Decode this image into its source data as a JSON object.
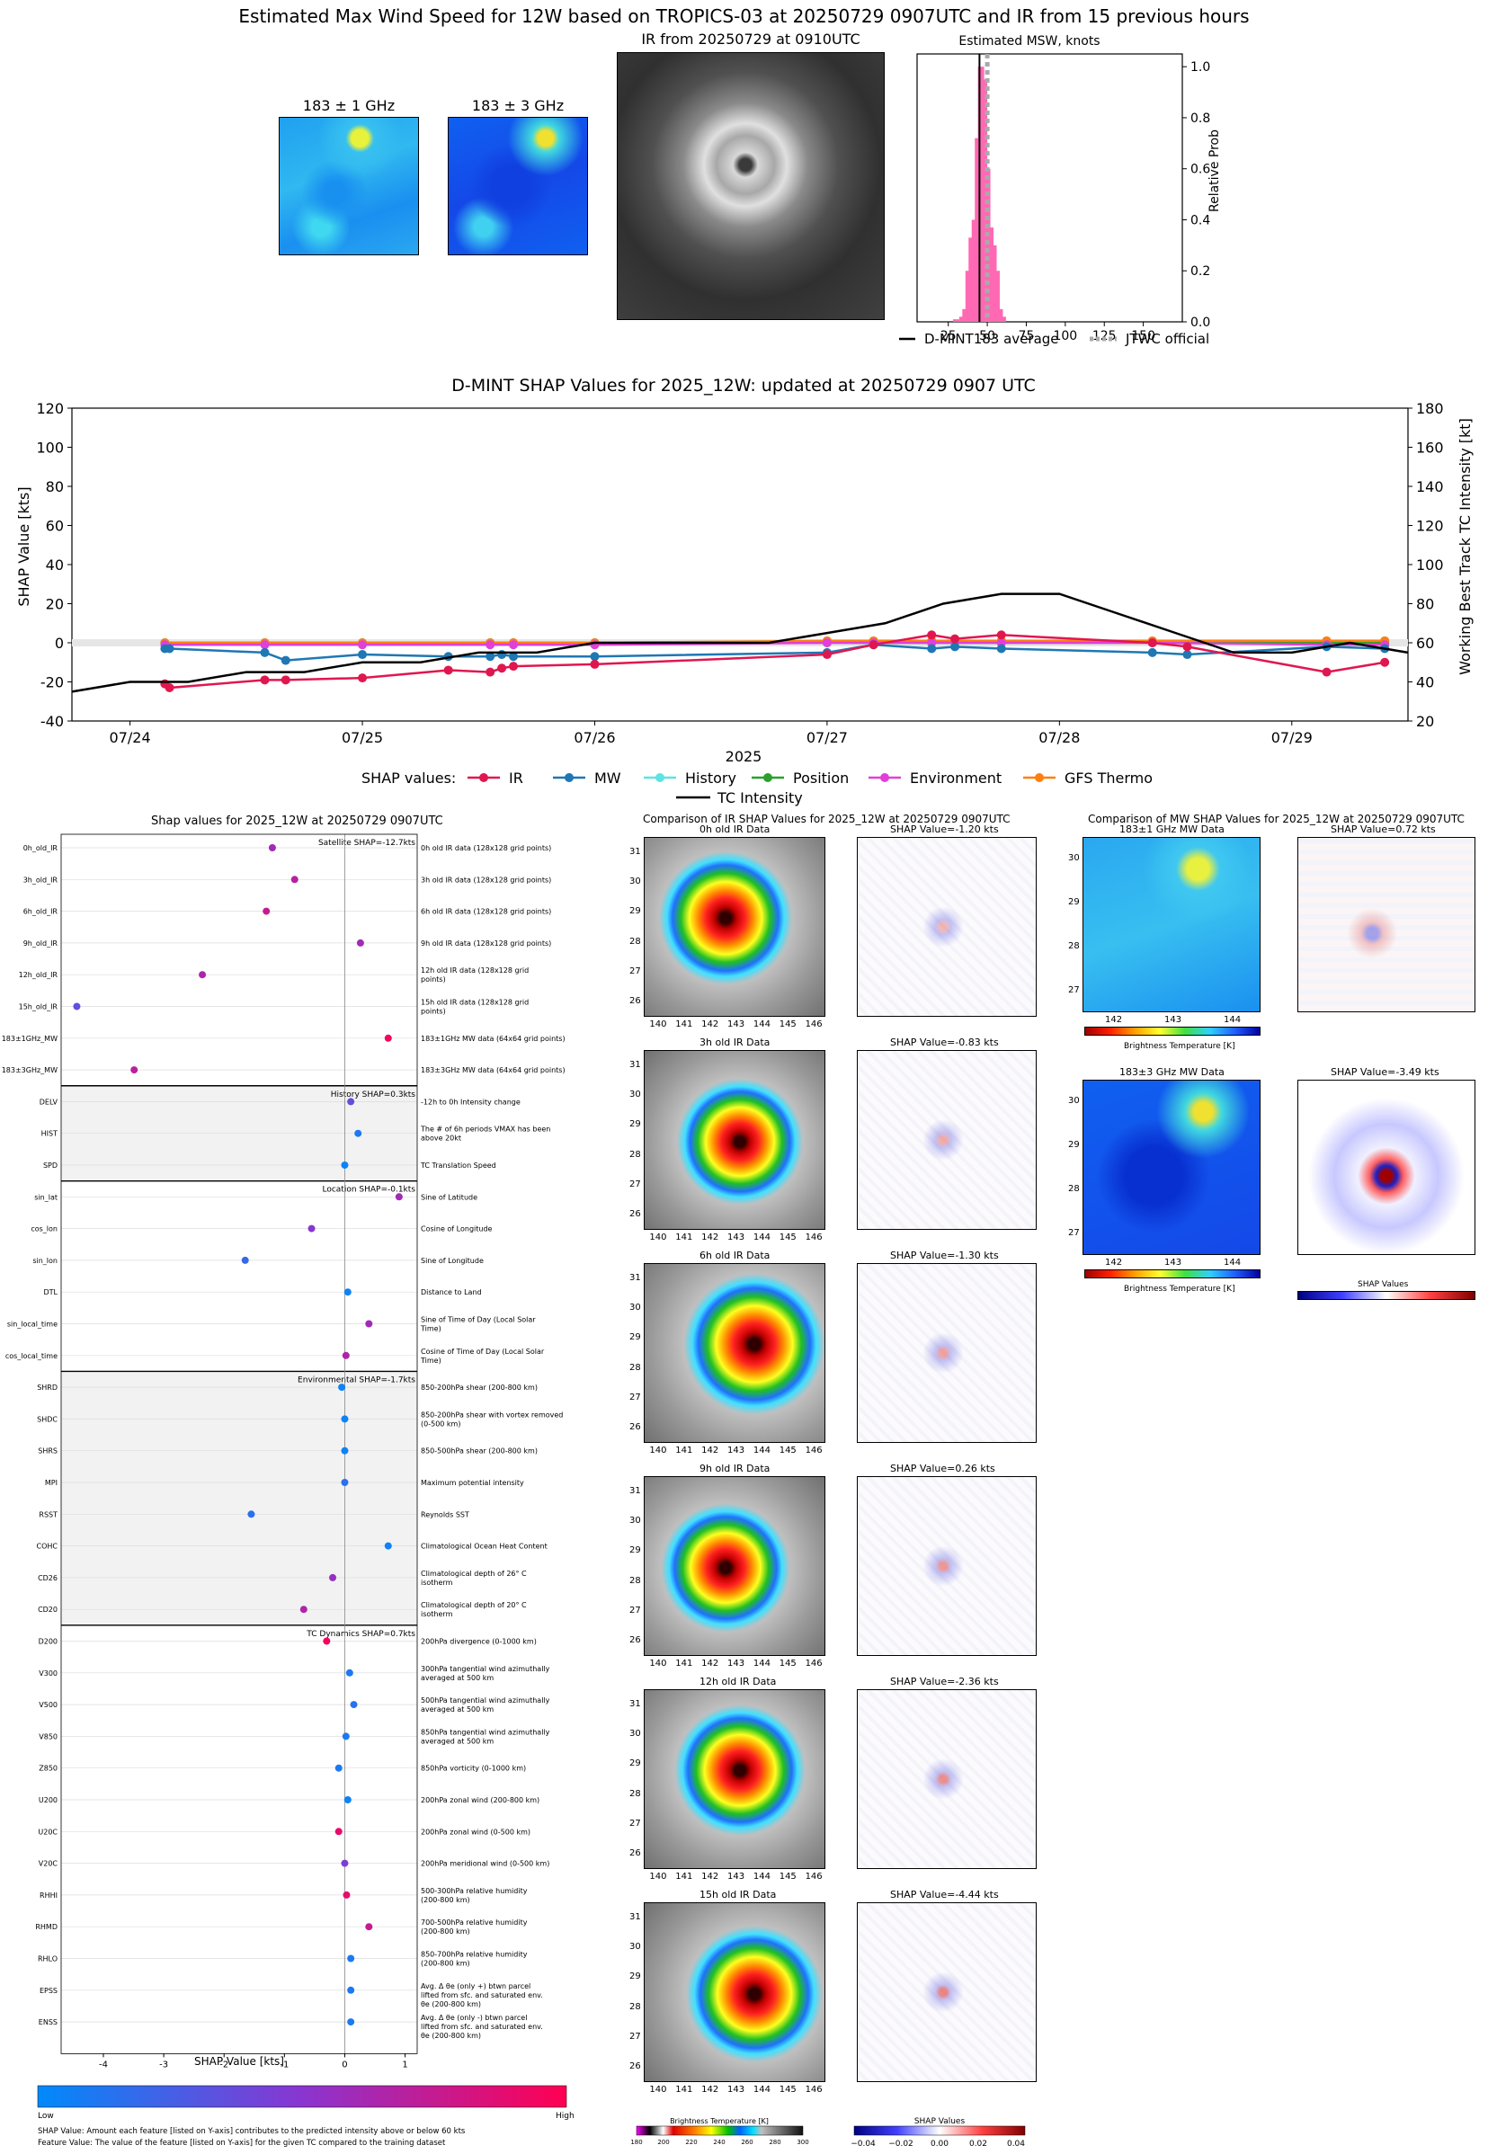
{
  "header": {
    "main_title": "Estimated Max Wind Speed for 12W based on TROPICS-03 at 20250729 0907UTC and IR from 15 previous hours",
    "mw1_label": "183 ± 1 GHz",
    "mw3_label": "183 ± 3 GHz",
    "ir_label": "IR from 20250729 at 0910UTC",
    "hist_title": "Estimated MSW, knots",
    "hist_ylabel": "Relative Prob",
    "legend_dmint": "D-MINT183 average",
    "legend_jtwc": "JTWC official"
  },
  "shap_time": {
    "title": "D-MINT SHAP Values for 2025_12W: updated at 20250729 0907 UTC",
    "ylabel_left": "SHAP Value [kts]",
    "ylabel_right": "Working Best Track TC Intensity [kt]",
    "xlabel": "2025",
    "legend_title": "SHAP values:",
    "legend_intensity": "TC Intensity"
  },
  "beeswarm": {
    "title": "Shap values for 2025_12W at 20250729 0907UTC",
    "xlabel": "SHAP Value [kts]",
    "colorbar_low": "Low",
    "colorbar_high": "High",
    "note1": "SHAP Value: Amount each feature [listed on Y-axis] contributes to the predicted intensity above or below 60 kts",
    "note2": "Feature Value: The value of the feature [listed on Y-axis] for the given TC compared to the training dataset",
    "group_satellite": "Satellite SHAP=-12.7kts",
    "group_history": "History SHAP=0.3kts",
    "group_location": "Location SHAP=-0.1kts",
    "group_environment": "Environmental SHAP=-1.7kts",
    "group_dynamics": "TC Dynamics SHAP=0.7kts"
  },
  "ir_comparison": {
    "title": "Comparison of IR SHAP Values for 2025_12W at 20250729 0907UTC",
    "panels": [
      {
        "data_title": "0h old IR Data",
        "shap_title": "SHAP Value=-1.20 kts"
      },
      {
        "data_title": "3h old IR Data",
        "shap_title": "SHAP Value=-0.83 kts"
      },
      {
        "data_title": "6h old IR Data",
        "shap_title": "SHAP Value=-1.30 kts"
      },
      {
        "data_title": "9h old IR Data",
        "shap_title": "SHAP Value=0.26 kts"
      },
      {
        "data_title": "12h old IR Data",
        "shap_title": "SHAP Value=-2.36 kts"
      },
      {
        "data_title": "15h old IR Data",
        "shap_title": "SHAP Value=-4.44 kts"
      }
    ],
    "bt_label": "Brightness Temperature [K]",
    "shap_label": "SHAP Values"
  },
  "mw_comparison": {
    "title": "Comparison of MW SHAP Values for 2025_12W at 20250729 0907UTC",
    "panels": [
      {
        "data_title": "183±1 GHz MW Data",
        "shap_title": "SHAP Value=0.72 kts"
      },
      {
        "data_title": "183±3 GHz MW Data",
        "shap_title": "SHAP Value=-3.49 kts"
      }
    ],
    "bt_label": "Brightness Temperature [K]",
    "shap_label": "SHAP Values"
  },
  "colors": {
    "ir": "#e0174f",
    "mw": "#1f77b4",
    "history": "#5ce3e3",
    "position": "#2ca02c",
    "environment": "#e040d8",
    "gfs": "#ff7f0e",
    "hist_bar": "#ff69b4"
  },
  "chart_data": [
    {
      "type": "bar",
      "title": "Estimated MSW, knots",
      "xlabel": "",
      "ylabel": "Relative Prob",
      "x": [
        30,
        34,
        36,
        38,
        40,
        42,
        44,
        46,
        48,
        50,
        52,
        54,
        56,
        58,
        60
      ],
      "values": [
        0.01,
        0.02,
        0.05,
        0.2,
        0.33,
        0.4,
        0.72,
        1.0,
        0.95,
        0.6,
        0.37,
        0.3,
        0.2,
        0.05,
        0.02
      ],
      "xlim": [
        5,
        175
      ],
      "ylim": [
        0,
        1.05
      ],
      "xticks": [
        25,
        50,
        75,
        100,
        125,
        150
      ],
      "yticks": [
        0.0,
        0.2,
        0.4,
        0.6,
        0.8,
        1.0
      ],
      "dmint_average": 45,
      "jtwc_official": 50
    },
    {
      "type": "line",
      "title": "D-MINT SHAP Values for 2025_12W: updated at 20250729 0907 UTC",
      "xlabel": "2025",
      "ylabel": "SHAP Value [kts]",
      "y2label": "Working Best Track TC Intensity [kt]",
      "ylim": [
        -40,
        120
      ],
      "y2lim": [
        20,
        180
      ],
      "xlim": [
        23.75,
        29.5
      ],
      "xticks": [
        24,
        25,
        26,
        27,
        28,
        29
      ],
      "xticklabels": [
        "07/24",
        "07/25",
        "07/26",
        "07/27",
        "07/28",
        "07/29"
      ],
      "yticks": [
        -40,
        -20,
        0,
        20,
        40,
        60,
        80,
        100,
        120
      ],
      "y2ticks": [
        20,
        40,
        60,
        80,
        100,
        120,
        140,
        160,
        180
      ],
      "series": [
        {
          "name": "IR",
          "x": [
            24.15,
            24.17,
            24.58,
            24.67,
            25.0,
            25.37,
            25.55,
            25.6,
            25.65,
            26.0,
            27.0,
            27.2,
            27.45,
            27.55,
            27.75,
            28.4,
            28.55,
            29.15,
            29.4
          ],
          "y": [
            -21,
            -23,
            -19,
            -19,
            -18,
            -14,
            -15,
            -13,
            -12,
            -11,
            -6,
            -1,
            4,
            2,
            4,
            0,
            -2,
            -15,
            -10
          ]
        },
        {
          "name": "MW",
          "x": [
            24.15,
            24.17,
            24.58,
            24.67,
            25.0,
            25.37,
            25.55,
            25.6,
            25.65,
            26.0,
            27.0,
            27.2,
            27.45,
            27.55,
            27.75,
            28.4,
            28.55,
            29.15,
            29.4
          ],
          "y": [
            -3,
            -3,
            -5,
            -9,
            -6,
            -7,
            -7,
            -6,
            -7,
            -7,
            -5,
            -1,
            -3,
            -2,
            -3,
            -5,
            -6,
            -2,
            -3
          ]
        },
        {
          "name": "History",
          "x": [
            24.15,
            24.58,
            25.0,
            25.55,
            25.65,
            26.0,
            27.0,
            27.2,
            27.45,
            27.75,
            28.4,
            29.15,
            29.4
          ],
          "y": [
            0,
            0,
            0,
            0,
            0,
            0,
            1,
            1,
            1,
            1,
            1,
            1,
            1
          ]
        },
        {
          "name": "Position",
          "x": [
            24.15,
            24.58,
            25.0,
            25.55,
            25.65,
            26.0,
            27.0,
            27.2,
            27.45,
            27.75,
            28.4,
            29.15,
            29.4
          ],
          "y": [
            0,
            0,
            0,
            0,
            0,
            0,
            0,
            0,
            0,
            0,
            0,
            0,
            0
          ]
        },
        {
          "name": "Environment",
          "x": [
            24.15,
            24.58,
            25.0,
            25.55,
            25.65,
            26.0,
            27.0,
            27.2,
            27.45,
            27.75,
            28.4,
            29.15,
            29.4
          ],
          "y": [
            -1,
            -1,
            -1,
            -1,
            -1,
            -1,
            0,
            0,
            0,
            0,
            0,
            -1,
            -1
          ]
        },
        {
          "name": "GFS Thermo",
          "x": [
            24.15,
            24.58,
            25.0,
            25.55,
            25.65,
            26.0,
            27.0,
            27.2,
            27.45,
            27.75,
            28.4,
            29.15,
            29.4
          ],
          "y": [
            0,
            0,
            0,
            0,
            0,
            0,
            1,
            1,
            1,
            1,
            1,
            1,
            1
          ]
        },
        {
          "name": "TC Intensity",
          "axis": "right",
          "x": [
            23.75,
            24.0,
            24.25,
            24.5,
            24.75,
            25.0,
            25.25,
            25.5,
            25.75,
            26.0,
            26.25,
            26.5,
            26.75,
            27.0,
            27.25,
            27.5,
            27.75,
            28.0,
            28.25,
            28.5,
            28.75,
            29.0,
            29.25,
            29.5
          ],
          "y": [
            35,
            40,
            40,
            45,
            45,
            50,
            50,
            55,
            55,
            60,
            60,
            60,
            60,
            65,
            70,
            80,
            85,
            85,
            75,
            65,
            55,
            55,
            60,
            55
          ]
        }
      ]
    },
    {
      "type": "scatter",
      "title": "Shap values for 2025_12W at 20250729 0907UTC",
      "xlabel": "SHAP Value [kts]",
      "xlim": [
        -4.7,
        1.2
      ],
      "xticks": [
        -4,
        -3,
        -2,
        -1,
        0,
        1
      ],
      "features": [
        {
          "name": "0h_old_IR",
          "desc": "0h old IR data (128x128 grid points)",
          "shap": -1.2,
          "value": 0.6
        },
        {
          "name": "3h_old_IR",
          "desc": "3h old IR data (128x128 grid points)",
          "shap": -0.83,
          "value": 0.7
        },
        {
          "name": "6h_old_IR",
          "desc": "6h old IR data (128x128 grid points)",
          "shap": -1.3,
          "value": 0.75
        },
        {
          "name": "9h_old_IR",
          "desc": "9h old IR data (128x128 grid points)",
          "shap": 0.26,
          "value": 0.6
        },
        {
          "name": "12h_old_IR",
          "desc": "12h old IR data (128x128 grid points)",
          "shap": -2.36,
          "value": 0.65
        },
        {
          "name": "15h_old_IR",
          "desc": "15h old IR data (128x128 grid points)",
          "shap": -4.44,
          "value": 0.35
        },
        {
          "name": "183±1GHz_MW",
          "desc": "183±1GHz MW data (64x64 grid points)",
          "shap": 0.72,
          "value": 0.95
        },
        {
          "name": "183±3GHz_MW",
          "desc": "183±3GHz MW data (64x64 grid points)",
          "shap": -3.49,
          "value": 0.7
        },
        {
          "name": "DELV",
          "desc": "-12h to 0h Intensity change",
          "shap": 0.1,
          "value": 0.35
        },
        {
          "name": "HIST",
          "desc": "The # of 6h periods VMAX has been above 20kt",
          "shap": 0.22,
          "value": 0.1
        },
        {
          "name": "SPD",
          "desc": "TC Translation Speed",
          "shap": 0.0,
          "value": 0.05
        },
        {
          "name": "sin_lat",
          "desc": "Sine of Latitude",
          "shap": 0.9,
          "value": 0.6
        },
        {
          "name": "cos_lon",
          "desc": "Cosine of Longitude",
          "shap": -0.55,
          "value": 0.5
        },
        {
          "name": "sin_lon",
          "desc": "Sine of Longitude",
          "shap": -1.65,
          "value": 0.2
        },
        {
          "name": "DTL",
          "desc": "Distance to Land",
          "shap": 0.05,
          "value": 0.05
        },
        {
          "name": "sin_local_time",
          "desc": "Sine of Time of Day (Local Solar Time)",
          "shap": 0.4,
          "value": 0.6
        },
        {
          "name": "cos_local_time",
          "desc": "Cosine of Time of Day (Local Solar Time)",
          "shap": 0.02,
          "value": 0.65
        },
        {
          "name": "SHRD",
          "desc": "850-200hPa shear (200-800 km)",
          "shap": -0.05,
          "value": 0.05
        },
        {
          "name": "SHDC",
          "desc": "850-200hPa shear with vortex removed (0-500 km)",
          "shap": 0.0,
          "value": 0.05
        },
        {
          "name": "SHRS",
          "desc": "850-500hPa shear (200-800 km)",
          "shap": 0.0,
          "value": 0.05
        },
        {
          "name": "MPI",
          "desc": "Maximum potential intensity",
          "shap": 0.0,
          "value": 0.15
        },
        {
          "name": "RSST",
          "desc": "Reynolds SST",
          "shap": -1.55,
          "value": 0.15
        },
        {
          "name": "COHC",
          "desc": "Climatological Ocean Heat Content",
          "shap": 0.72,
          "value": 0.05
        },
        {
          "name": "CD26",
          "desc": "Climatological depth of 26° C isotherm",
          "shap": -0.2,
          "value": 0.55
        },
        {
          "name": "CD20",
          "desc": "Climatological depth of 20° C isotherm",
          "shap": -0.68,
          "value": 0.65
        },
        {
          "name": "D200",
          "desc": "200hPa divergence (0-1000 km)",
          "shap": -0.3,
          "value": 0.95
        },
        {
          "name": "V300",
          "desc": "300hPa tangential wind azimuthally averaged at 500 km",
          "shap": 0.08,
          "value": 0.1
        },
        {
          "name": "V500",
          "desc": "500hPa tangential wind azimuthally averaged at 500 km",
          "shap": 0.15,
          "value": 0.15
        },
        {
          "name": "V850",
          "desc": "850hPa tangential wind azimuthally averaged at 500 km",
          "shap": 0.02,
          "value": 0.1
        },
        {
          "name": "Z850",
          "desc": "850hPa vorticity (0-1000 km)",
          "shap": -0.1,
          "value": 0.1
        },
        {
          "name": "U200",
          "desc": "200hPa zonal wind (200-800 km)",
          "shap": 0.05,
          "value": 0.05
        },
        {
          "name": "U20C",
          "desc": "200hPa zonal wind (0-500 km)",
          "shap": -0.1,
          "value": 0.9
        },
        {
          "name": "V20C",
          "desc": "200hPa meridional wind (0-500 km)",
          "shap": 0.0,
          "value": 0.45
        },
        {
          "name": "RHHI",
          "desc": "500-300hPa relative humidity (200-800 km)",
          "shap": 0.03,
          "value": 0.9
        },
        {
          "name": "RHMD",
          "desc": "700-500hPa relative humidity (200-800 km)",
          "shap": 0.4,
          "value": 0.75
        },
        {
          "name": "RHLO",
          "desc": "850-700hPa relative humidity (200-800 km)",
          "shap": 0.1,
          "value": 0.1
        },
        {
          "name": "EPSS",
          "desc": "Avg. Δ θe (only +) btwn parcel lifted from sfc. and saturated env. θe (200-800 km)",
          "shap": 0.1,
          "value": 0.1
        },
        {
          "name": "ENSS",
          "desc": "Avg. Δ θe (only -) btwn parcel lifted from sfc. and saturated env. θe (200-800 km)",
          "shap": 0.1,
          "value": 0.1
        }
      ]
    }
  ]
}
